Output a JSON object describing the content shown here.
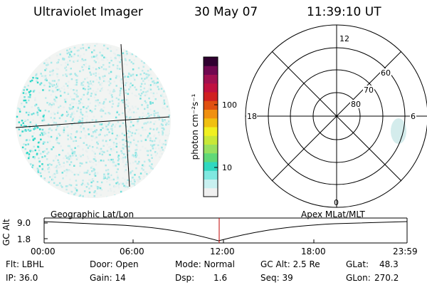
{
  "header": {
    "title": "Ultraviolet Imager",
    "date": "30 May 07",
    "time": "11:39:10 UT"
  },
  "colorbar": {
    "unit_label": "photon cm⁻²s⁻¹",
    "ticks": [
      "100",
      "10"
    ],
    "colors": [
      "#f0f0f0",
      "#c8f0f0",
      "#80e8e0",
      "#30d8c0",
      "#60d878",
      "#98e060",
      "#c8e838",
      "#f0f020",
      "#f0c010",
      "#f09010",
      "#e05010",
      "#d02020",
      "#c01040",
      "#a01050",
      "#700850",
      "#300030"
    ]
  },
  "left_panel": {
    "label": "Geographic Lat/Lon",
    "dot_colors": [
      "#e8f0f0",
      "#c0ecec",
      "#a8e8e8",
      "#70e0dc",
      "#30d8c8"
    ]
  },
  "polar_plot": {
    "label": "Apex MLat/MLT",
    "lat_labels": [
      "60",
      "70",
      "80"
    ],
    "mlt_labels": [
      "12",
      "18",
      "6",
      "0"
    ]
  },
  "timeline": {
    "ylabel": "GC Alt",
    "yticks": [
      "9.0",
      "1.8"
    ],
    "xticks": [
      "00:00",
      "06:00",
      "12:00",
      "18:00",
      "23:59"
    ],
    "current_marker_color": "#c00000"
  },
  "info": {
    "flt": "Flt: LBHL",
    "ip": "IP: 36.0",
    "door": "Door: Open",
    "gain": "Gain: 14",
    "mode": "Mode: Normal",
    "dsp_label": "Dsp:",
    "dsp_value": "1.6",
    "gc_alt": "GC Alt: 2.5 Re",
    "seq": "Seq: 39",
    "glat_label": "GLat:",
    "glat_value": "48.3",
    "glon_label": "GLon:",
    "glon_value": "270.2"
  }
}
